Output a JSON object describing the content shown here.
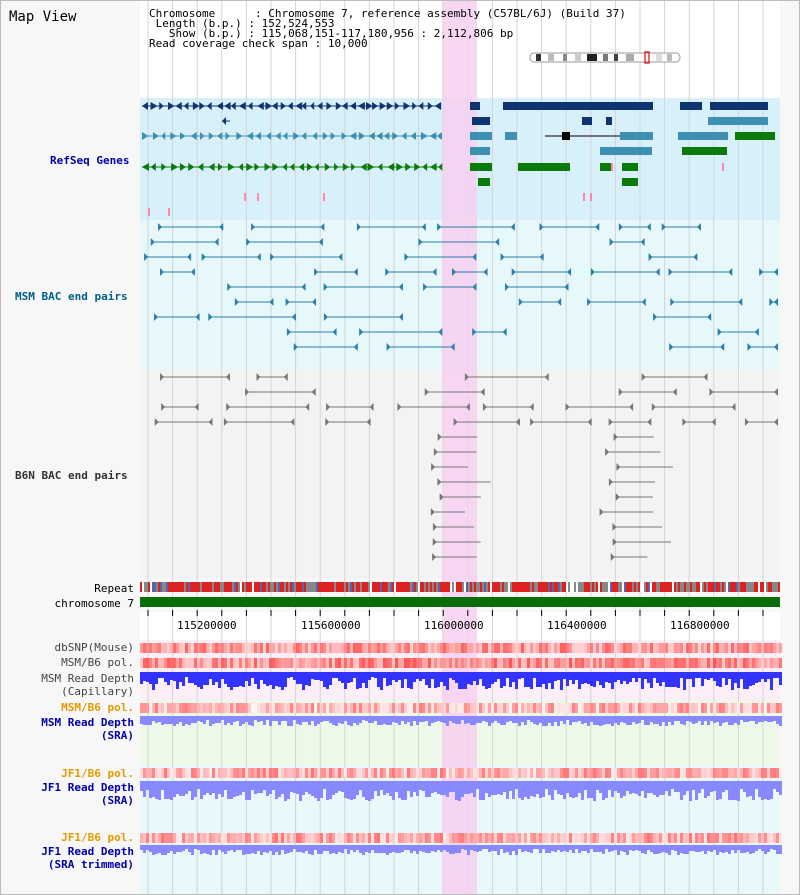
{
  "view": {
    "title": "Map View",
    "info": {
      "chromosome_key": "Chromosome",
      "chromosome_val": "Chromosome 7, reference assembly (C57BL/6J) (Build 37)",
      "length_key": "Length (b.p.)",
      "length_val": "152,524,553",
      "show_key": "Show (b.p.)",
      "show_val": "115,068,151-117,180,956 : 2,112,806 bp",
      "coverage_key": "Read coverage check span",
      "coverage_val": "10,000"
    }
  },
  "tracks": {
    "refseq": "RefSeq Genes",
    "msm_bac": "MSM BAC end pairs",
    "b6n_bac": "B6N BAC end pairs",
    "repeat": "Repeat",
    "chromosome": "chromosome 7",
    "dbsnp": "dbSNP(Mouse)",
    "msm_b6_pol": "MSM/B6 pol.",
    "msm_depth_cap_1": "MSM Read Depth",
    "msm_depth_cap_2": "(Capillary)",
    "msm_b6_pol_2": "MSM/B6 pol.",
    "msm_depth_sra_1": "MSM Read Depth",
    "msm_depth_sra_2": "(SRA)",
    "jf1_b6_pol": "JF1/B6 pol.",
    "jf1_depth_sra_1": "JF1 Read Depth",
    "jf1_depth_sra_2": "(SRA)",
    "jf1_b6_pol_2": "JF1/B6 pol.",
    "jf1_depth_trim_1": "JF1 Read Depth",
    "jf1_depth_trim_2": "(SRA trimmed)"
  },
  "axis": {
    "ticks": [
      "115200000",
      "115600000",
      "116000000",
      "116400000",
      "116800000"
    ]
  },
  "colors": {
    "refseq_bg": "#d8f0fa",
    "msm_bg": "#e6f8fa",
    "b6n_bg": "#f3f3f3",
    "highlight": "#f7d0f0",
    "gene_dark": "#0f3470",
    "gene_mid": "#3f8fb3",
    "gene_green": "#0a7a0a",
    "bac_msm": "#2c7fa8",
    "bac_b6n": "#777777",
    "chromosome": "#0a6d0a",
    "depth_blue": "#3333ff",
    "depth_light": "#8888ff"
  }
}
